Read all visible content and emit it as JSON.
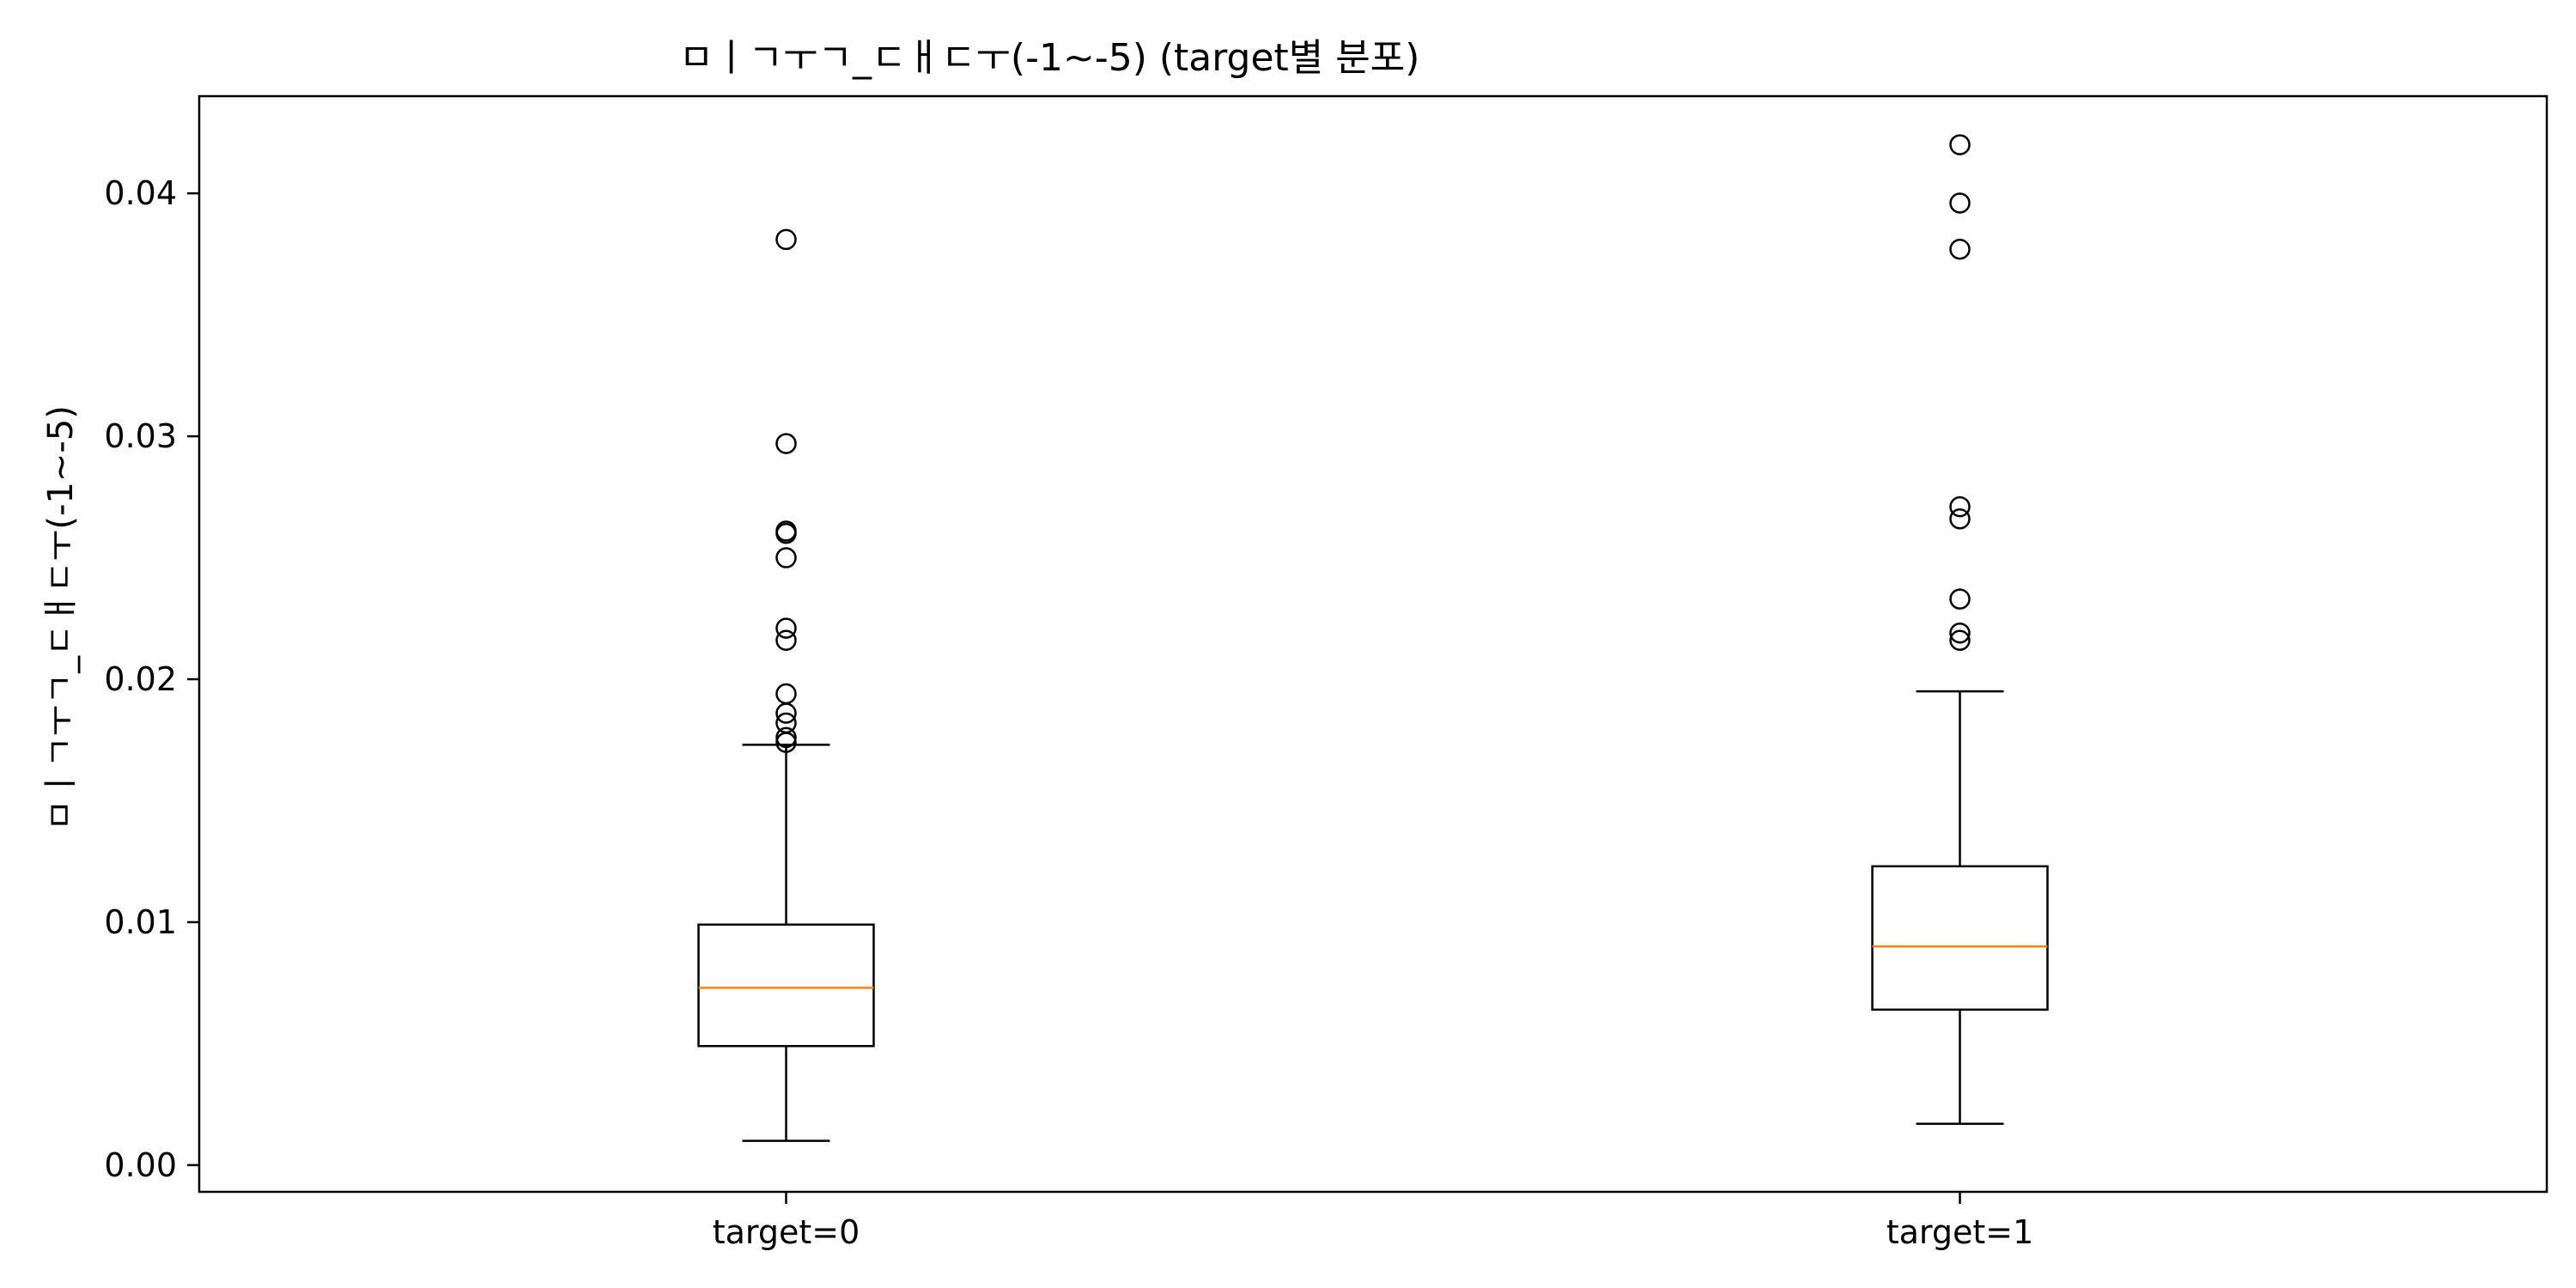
{
  "chart_data": {
    "type": "box",
    "title": "ㅁㅣㄱㅜㄱ_ㄷㅐㄷㅜ(-1~-5) (target별 분포)",
    "xlabel": "",
    "ylabel": "ㅁㅣㄱㅜㄱ_ㄷㅐㄷㅜ(-1~-5)",
    "ylim": [
      -0.0011,
      0.044
    ],
    "yticks": [
      0.0,
      0.01,
      0.02,
      0.03,
      0.04
    ],
    "ytick_labels": [
      "0.00",
      "0.01",
      "0.02",
      "0.03",
      "0.04"
    ],
    "grid": false,
    "categories": [
      "target=0",
      "target=1"
    ],
    "series": [
      {
        "category": "target=0",
        "whisker_low": 0.001,
        "q1": 0.0049,
        "median": 0.0073,
        "q3": 0.0099,
        "whisker_high": 0.0173,
        "outliers": [
          0.0381,
          0.0297,
          0.0261,
          0.026,
          0.025,
          0.0221,
          0.0216,
          0.0194,
          0.0186,
          0.0182,
          0.0176,
          0.0174
        ]
      },
      {
        "category": "target=1",
        "whisker_low": 0.0017,
        "q1": 0.0064,
        "median": 0.009,
        "q3": 0.0123,
        "whisker_high": 0.0195,
        "outliers": [
          0.042,
          0.0396,
          0.0377,
          0.0271,
          0.0266,
          0.0233,
          0.0219,
          0.0216
        ]
      }
    ],
    "colors": {
      "median": "#ff7f0e",
      "box": "#000000",
      "flier": "#000000"
    }
  }
}
